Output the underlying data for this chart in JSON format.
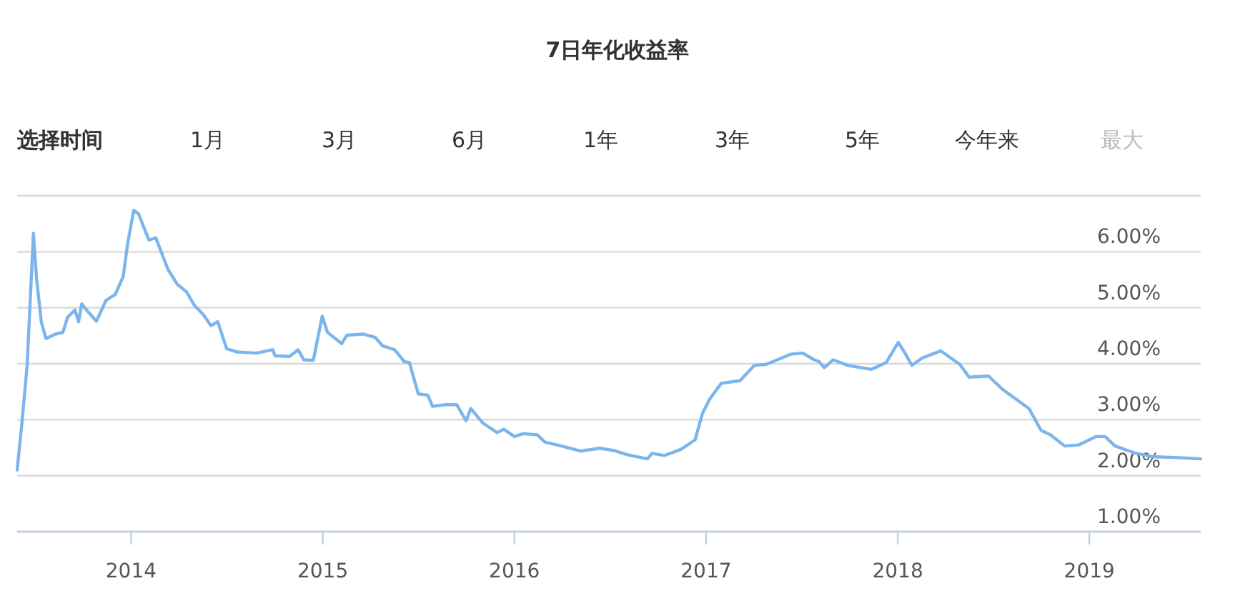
{
  "chart_data": {
    "type": "line",
    "title": "7日年化收益率",
    "annotations": [
      "选择时间",
      "1月",
      "3月",
      "6月",
      "1年",
      "3年",
      "5年",
      "今年来",
      "最大"
    ],
    "x": [
      "2013-05-29",
      "2013-06-08",
      "2013-06-17",
      "2013-06-29",
      "2013-07-05",
      "2013-07-14",
      "2013-07-23",
      "2013-08-10",
      "2013-08-24",
      "2013-09-02",
      "2013-09-16",
      "2013-09-23",
      "2013-09-29",
      "2013-10-08",
      "2013-10-27",
      "2013-11-14",
      "2013-12-02",
      "2013-12-17",
      "2013-12-25",
      "2014-01-06",
      "2014-01-15",
      "2014-01-26",
      "2014-02-04",
      "2014-02-17",
      "2014-03-12",
      "2014-03-30",
      "2014-04-17",
      "2014-05-01",
      "2014-05-19",
      "2014-06-02",
      "2014-06-15",
      "2014-07-02",
      "2014-07-22",
      "2014-08-27",
      "2014-09-28",
      "2014-10-02",
      "2014-10-30",
      "2014-11-15",
      "2014-11-26",
      "2014-12-14",
      "2014-12-31",
      "2015-01-10",
      "2015-02-06",
      "2015-02-16",
      "2015-03-19",
      "2015-04-11",
      "2015-04-25",
      "2015-05-18",
      "2015-06-05",
      "2015-06-15",
      "2015-07-02",
      "2015-07-20",
      "2015-07-29",
      "2015-08-25",
      "2015-09-13",
      "2015-10-01",
      "2015-10-10",
      "2015-11-02",
      "2015-11-29",
      "2015-12-12",
      "2016-01-01",
      "2016-01-18",
      "2016-02-14",
      "2016-02-28",
      "2016-03-31",
      "2016-05-06",
      "2016-06-12",
      "2016-07-09",
      "2016-08-05",
      "2016-09-11",
      "2016-09-20",
      "2016-10-13",
      "2016-11-14",
      "2016-12-11",
      "2016-12-25",
      "2017-01-08",
      "2017-01-30",
      "2017-03-07",
      "2017-04-03",
      "2017-04-26",
      "2017-06-11",
      "2017-07-04",
      "2017-07-26",
      "2017-08-04",
      "2017-08-14",
      "2017-08-31",
      "2017-09-28",
      "2017-11-12",
      "2017-12-10",
      "2018-01-02",
      "2018-01-15",
      "2018-01-28",
      "2018-02-16",
      "2018-03-24",
      "2018-04-29",
      "2018-05-17",
      "2018-06-23",
      "2018-07-20",
      "2018-09-08",
      "2018-10-01",
      "2018-10-19",
      "2018-11-15",
      "2018-12-12",
      "2019-01-14",
      "2019-01-31",
      "2019-02-19",
      "2019-03-27",
      "2019-05-02",
      "2019-06-26",
      "2019-08-01"
    ],
    "series": [
      {
        "color": "#7cb5ec",
        "values": [
          2.1,
          3.03,
          3.97,
          6.33,
          5.52,
          4.75,
          4.45,
          4.53,
          4.56,
          4.83,
          4.96,
          4.75,
          5.07,
          4.96,
          4.76,
          5.13,
          5.24,
          5.56,
          6.12,
          6.74,
          6.68,
          6.42,
          6.21,
          6.25,
          5.69,
          5.42,
          5.28,
          5.05,
          4.87,
          4.68,
          4.75,
          4.27,
          4.21,
          4.19,
          4.25,
          4.14,
          4.13,
          4.25,
          4.07,
          4.06,
          4.85,
          4.56,
          4.36,
          4.51,
          4.53,
          4.47,
          4.32,
          4.25,
          4.04,
          4.02,
          3.46,
          3.44,
          3.24,
          3.27,
          3.27,
          2.98,
          3.2,
          2.94,
          2.77,
          2.83,
          2.7,
          2.75,
          2.73,
          2.6,
          2.53,
          2.44,
          2.49,
          2.45,
          2.37,
          2.3,
          2.4,
          2.36,
          2.47,
          2.64,
          3.11,
          3.37,
          3.65,
          3.7,
          3.97,
          3.99,
          4.17,
          4.19,
          4.07,
          4.04,
          3.93,
          4.07,
          3.97,
          3.9,
          4.02,
          4.38,
          4.19,
          3.97,
          4.1,
          4.23,
          3.99,
          3.76,
          3.78,
          3.54,
          3.2,
          2.81,
          2.73,
          2.53,
          2.55,
          2.7,
          2.7,
          2.53,
          2.41,
          2.34,
          2.32,
          2.3
        ]
      }
    ],
    "xlim": [
      "2013-05-29",
      "2019-08-01"
    ],
    "xticks": [
      {
        "value": "2014-01-01",
        "label": "2014"
      },
      {
        "value": "2015-01-01",
        "label": "2015"
      },
      {
        "value": "2016-01-01",
        "label": "2016"
      },
      {
        "value": "2017-01-01",
        "label": "2017"
      },
      {
        "value": "2018-01-01",
        "label": "2018"
      },
      {
        "value": "2019-01-01",
        "label": "2019"
      }
    ],
    "ylim": [
      1,
      7
    ],
    "yticks": [
      {
        "value": 1,
        "label": "1.00%"
      },
      {
        "value": 2,
        "label": "2.00%"
      },
      {
        "value": 3,
        "label": "3.00%"
      },
      {
        "value": 4,
        "label": "4.00%"
      },
      {
        "value": 5,
        "label": "5.00%"
      },
      {
        "value": 6,
        "label": "6.00%"
      },
      {
        "value": 7,
        "label": null
      }
    ],
    "grid": "y",
    "marker": "none",
    "line_style": "solid"
  }
}
